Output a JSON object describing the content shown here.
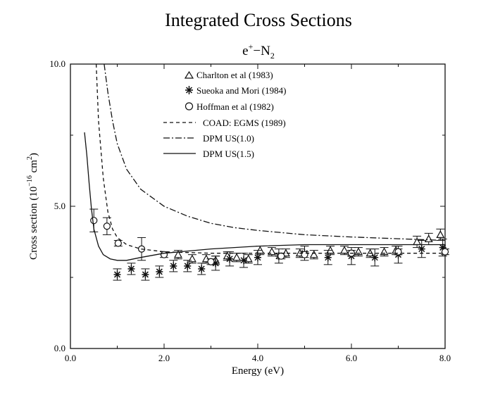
{
  "chart_data": {
    "type": "scatter",
    "title": "Integrated Cross Sections",
    "subtitle": {
      "base": "e",
      "sup": "+",
      "dash": "−N",
      "sub": "2"
    },
    "xlabel": "Energy (eV)",
    "ylabel": {
      "pre": "Cross section (10",
      "exp": "−16",
      "mid": " cm",
      "exp2": "2",
      "post": ")"
    },
    "xlim": [
      0,
      8
    ],
    "ylim": [
      0,
      10
    ],
    "x_ticks": [
      {
        "v": 0,
        "label": "0.0"
      },
      {
        "v": 2,
        "label": "2.0"
      },
      {
        "v": 4,
        "label": "4.0"
      },
      {
        "v": 6,
        "label": "6.0"
      },
      {
        "v": 8,
        "label": "8.0"
      }
    ],
    "y_ticks": [
      {
        "v": 0,
        "label": "0.0"
      },
      {
        "v": 5,
        "label": "5.0"
      },
      {
        "v": 10,
        "label": "10.0"
      }
    ],
    "legend_position": "top-center",
    "series": [
      {
        "name": "Charlton et al (1983)",
        "marker": "triangle",
        "kind": "points",
        "points": [
          {
            "x": 2.3,
            "y": 3.3,
            "err": 0.15
          },
          {
            "x": 2.6,
            "y": 3.15,
            "err": 0.15
          },
          {
            "x": 2.9,
            "y": 3.15,
            "err": 0.15
          },
          {
            "x": 3.1,
            "y": 3.1,
            "err": 0.15
          },
          {
            "x": 3.35,
            "y": 3.25,
            "err": 0.15
          },
          {
            "x": 3.55,
            "y": 3.2,
            "err": 0.15
          },
          {
            "x": 3.8,
            "y": 3.15,
            "err": 0.15
          },
          {
            "x": 4.05,
            "y": 3.45,
            "err": 0.15
          },
          {
            "x": 4.3,
            "y": 3.4,
            "err": 0.15
          },
          {
            "x": 4.6,
            "y": 3.35,
            "err": 0.15
          },
          {
            "x": 4.9,
            "y": 3.35,
            "err": 0.15
          },
          {
            "x": 5.2,
            "y": 3.3,
            "err": 0.15
          },
          {
            "x": 5.55,
            "y": 3.45,
            "err": 0.15
          },
          {
            "x": 5.85,
            "y": 3.45,
            "err": 0.15
          },
          {
            "x": 6.15,
            "y": 3.4,
            "err": 0.15
          },
          {
            "x": 6.4,
            "y": 3.35,
            "err": 0.15
          },
          {
            "x": 6.7,
            "y": 3.4,
            "err": 0.15
          },
          {
            "x": 6.95,
            "y": 3.45,
            "err": 0.15
          },
          {
            "x": 7.4,
            "y": 3.75,
            "err": 0.2
          },
          {
            "x": 7.65,
            "y": 3.85,
            "err": 0.2
          },
          {
            "x": 7.9,
            "y": 4.0,
            "err": 0.2
          }
        ]
      },
      {
        "name": "Sueoka and Mori (1984)",
        "marker": "asterisk",
        "kind": "points",
        "points": [
          {
            "x": 1.0,
            "y": 2.6,
            "err": 0.2
          },
          {
            "x": 1.3,
            "y": 2.8,
            "err": 0.2
          },
          {
            "x": 1.6,
            "y": 2.6,
            "err": 0.2
          },
          {
            "x": 1.9,
            "y": 2.7,
            "err": 0.2
          },
          {
            "x": 2.2,
            "y": 2.9,
            "err": 0.2
          },
          {
            "x": 2.5,
            "y": 2.9,
            "err": 0.2
          },
          {
            "x": 2.8,
            "y": 2.8,
            "err": 0.2
          },
          {
            "x": 3.1,
            "y": 3.0,
            "err": 0.25
          },
          {
            "x": 3.4,
            "y": 3.15,
            "err": 0.25
          },
          {
            "x": 3.7,
            "y": 3.1,
            "err": 0.25
          },
          {
            "x": 4.0,
            "y": 3.2,
            "err": 0.25
          },
          {
            "x": 4.45,
            "y": 3.25,
            "err": 0.25
          },
          {
            "x": 5.0,
            "y": 3.35,
            "err": 0.25
          },
          {
            "x": 5.5,
            "y": 3.2,
            "err": 0.25
          },
          {
            "x": 6.0,
            "y": 3.25,
            "err": 0.3
          },
          {
            "x": 6.5,
            "y": 3.2,
            "err": 0.3
          },
          {
            "x": 7.0,
            "y": 3.3,
            "err": 0.3
          },
          {
            "x": 7.5,
            "y": 3.5,
            "err": 0.3
          },
          {
            "x": 7.95,
            "y": 3.55,
            "err": 0.3
          }
        ]
      },
      {
        "name": "Hoffman et al (1982)",
        "marker": "circle",
        "kind": "points",
        "points": [
          {
            "x": 0.5,
            "y": 4.5,
            "err": 0.4
          },
          {
            "x": 0.78,
            "y": 4.3,
            "err": 0.3
          },
          {
            "x": 1.02,
            "y": 3.7,
            "err": 0.1
          },
          {
            "x": 1.52,
            "y": 3.5,
            "err": 0.4
          },
          {
            "x": 2.0,
            "y": 3.3,
            "err": 0.1
          },
          {
            "x": 3.0,
            "y": 3.05,
            "err": 0.1
          },
          {
            "x": 4.5,
            "y": 3.25,
            "err": 0.1
          },
          {
            "x": 5.0,
            "y": 3.3,
            "err": 0.1
          },
          {
            "x": 6.0,
            "y": 3.35,
            "err": 0.1
          },
          {
            "x": 7.0,
            "y": 3.4,
            "err": 0.1
          },
          {
            "x": 8.0,
            "y": 3.4,
            "err": 0.1
          }
        ]
      },
      {
        "name": "COAD: EGMS (1989)",
        "kind": "line",
        "dash": "5,4",
        "points": [
          {
            "x": 0.55,
            "y": 10
          },
          {
            "x": 0.6,
            "y": 8.0
          },
          {
            "x": 0.7,
            "y": 6.0
          },
          {
            "x": 0.8,
            "y": 4.8
          },
          {
            "x": 0.9,
            "y": 4.2
          },
          {
            "x": 1.0,
            "y": 3.9
          },
          {
            "x": 1.2,
            "y": 3.65
          },
          {
            "x": 1.5,
            "y": 3.5
          },
          {
            "x": 2.0,
            "y": 3.4
          },
          {
            "x": 3.0,
            "y": 3.35
          },
          {
            "x": 4.0,
            "y": 3.35
          },
          {
            "x": 5.0,
            "y": 3.35
          },
          {
            "x": 6.0,
            "y": 3.35
          },
          {
            "x": 7.0,
            "y": 3.35
          },
          {
            "x": 8.0,
            "y": 3.35
          }
        ]
      },
      {
        "name": "DPM US(1.0)",
        "kind": "line",
        "dash": "9,3,2,3",
        "points": [
          {
            "x": 0.72,
            "y": 10
          },
          {
            "x": 0.8,
            "y": 9.0
          },
          {
            "x": 0.9,
            "y": 8.0
          },
          {
            "x": 1.0,
            "y": 7.2
          },
          {
            "x": 1.2,
            "y": 6.3
          },
          {
            "x": 1.5,
            "y": 5.6
          },
          {
            "x": 2.0,
            "y": 5.0
          },
          {
            "x": 2.5,
            "y": 4.65
          },
          {
            "x": 3.0,
            "y": 4.4
          },
          {
            "x": 3.5,
            "y": 4.25
          },
          {
            "x": 4.0,
            "y": 4.15
          },
          {
            "x": 5.0,
            "y": 4.0
          },
          {
            "x": 6.0,
            "y": 3.92
          },
          {
            "x": 7.0,
            "y": 3.86
          },
          {
            "x": 8.0,
            "y": 3.8
          }
        ]
      },
      {
        "name": "DPM US(1.5)",
        "kind": "line",
        "dash": "",
        "points": [
          {
            "x": 0.3,
            "y": 7.6
          },
          {
            "x": 0.35,
            "y": 6.8
          },
          {
            "x": 0.4,
            "y": 5.8
          },
          {
            "x": 0.45,
            "y": 4.9
          },
          {
            "x": 0.5,
            "y": 4.2
          },
          {
            "x": 0.6,
            "y": 3.6
          },
          {
            "x": 0.7,
            "y": 3.3
          },
          {
            "x": 0.85,
            "y": 3.15
          },
          {
            "x": 1.0,
            "y": 3.1
          },
          {
            "x": 1.2,
            "y": 3.1
          },
          {
            "x": 1.5,
            "y": 3.2
          },
          {
            "x": 2.0,
            "y": 3.35
          },
          {
            "x": 3.0,
            "y": 3.5
          },
          {
            "x": 4.0,
            "y": 3.6
          },
          {
            "x": 5.0,
            "y": 3.65
          },
          {
            "x": 6.0,
            "y": 3.65
          },
          {
            "x": 7.0,
            "y": 3.65
          },
          {
            "x": 8.0,
            "y": 3.65
          }
        ]
      }
    ]
  }
}
